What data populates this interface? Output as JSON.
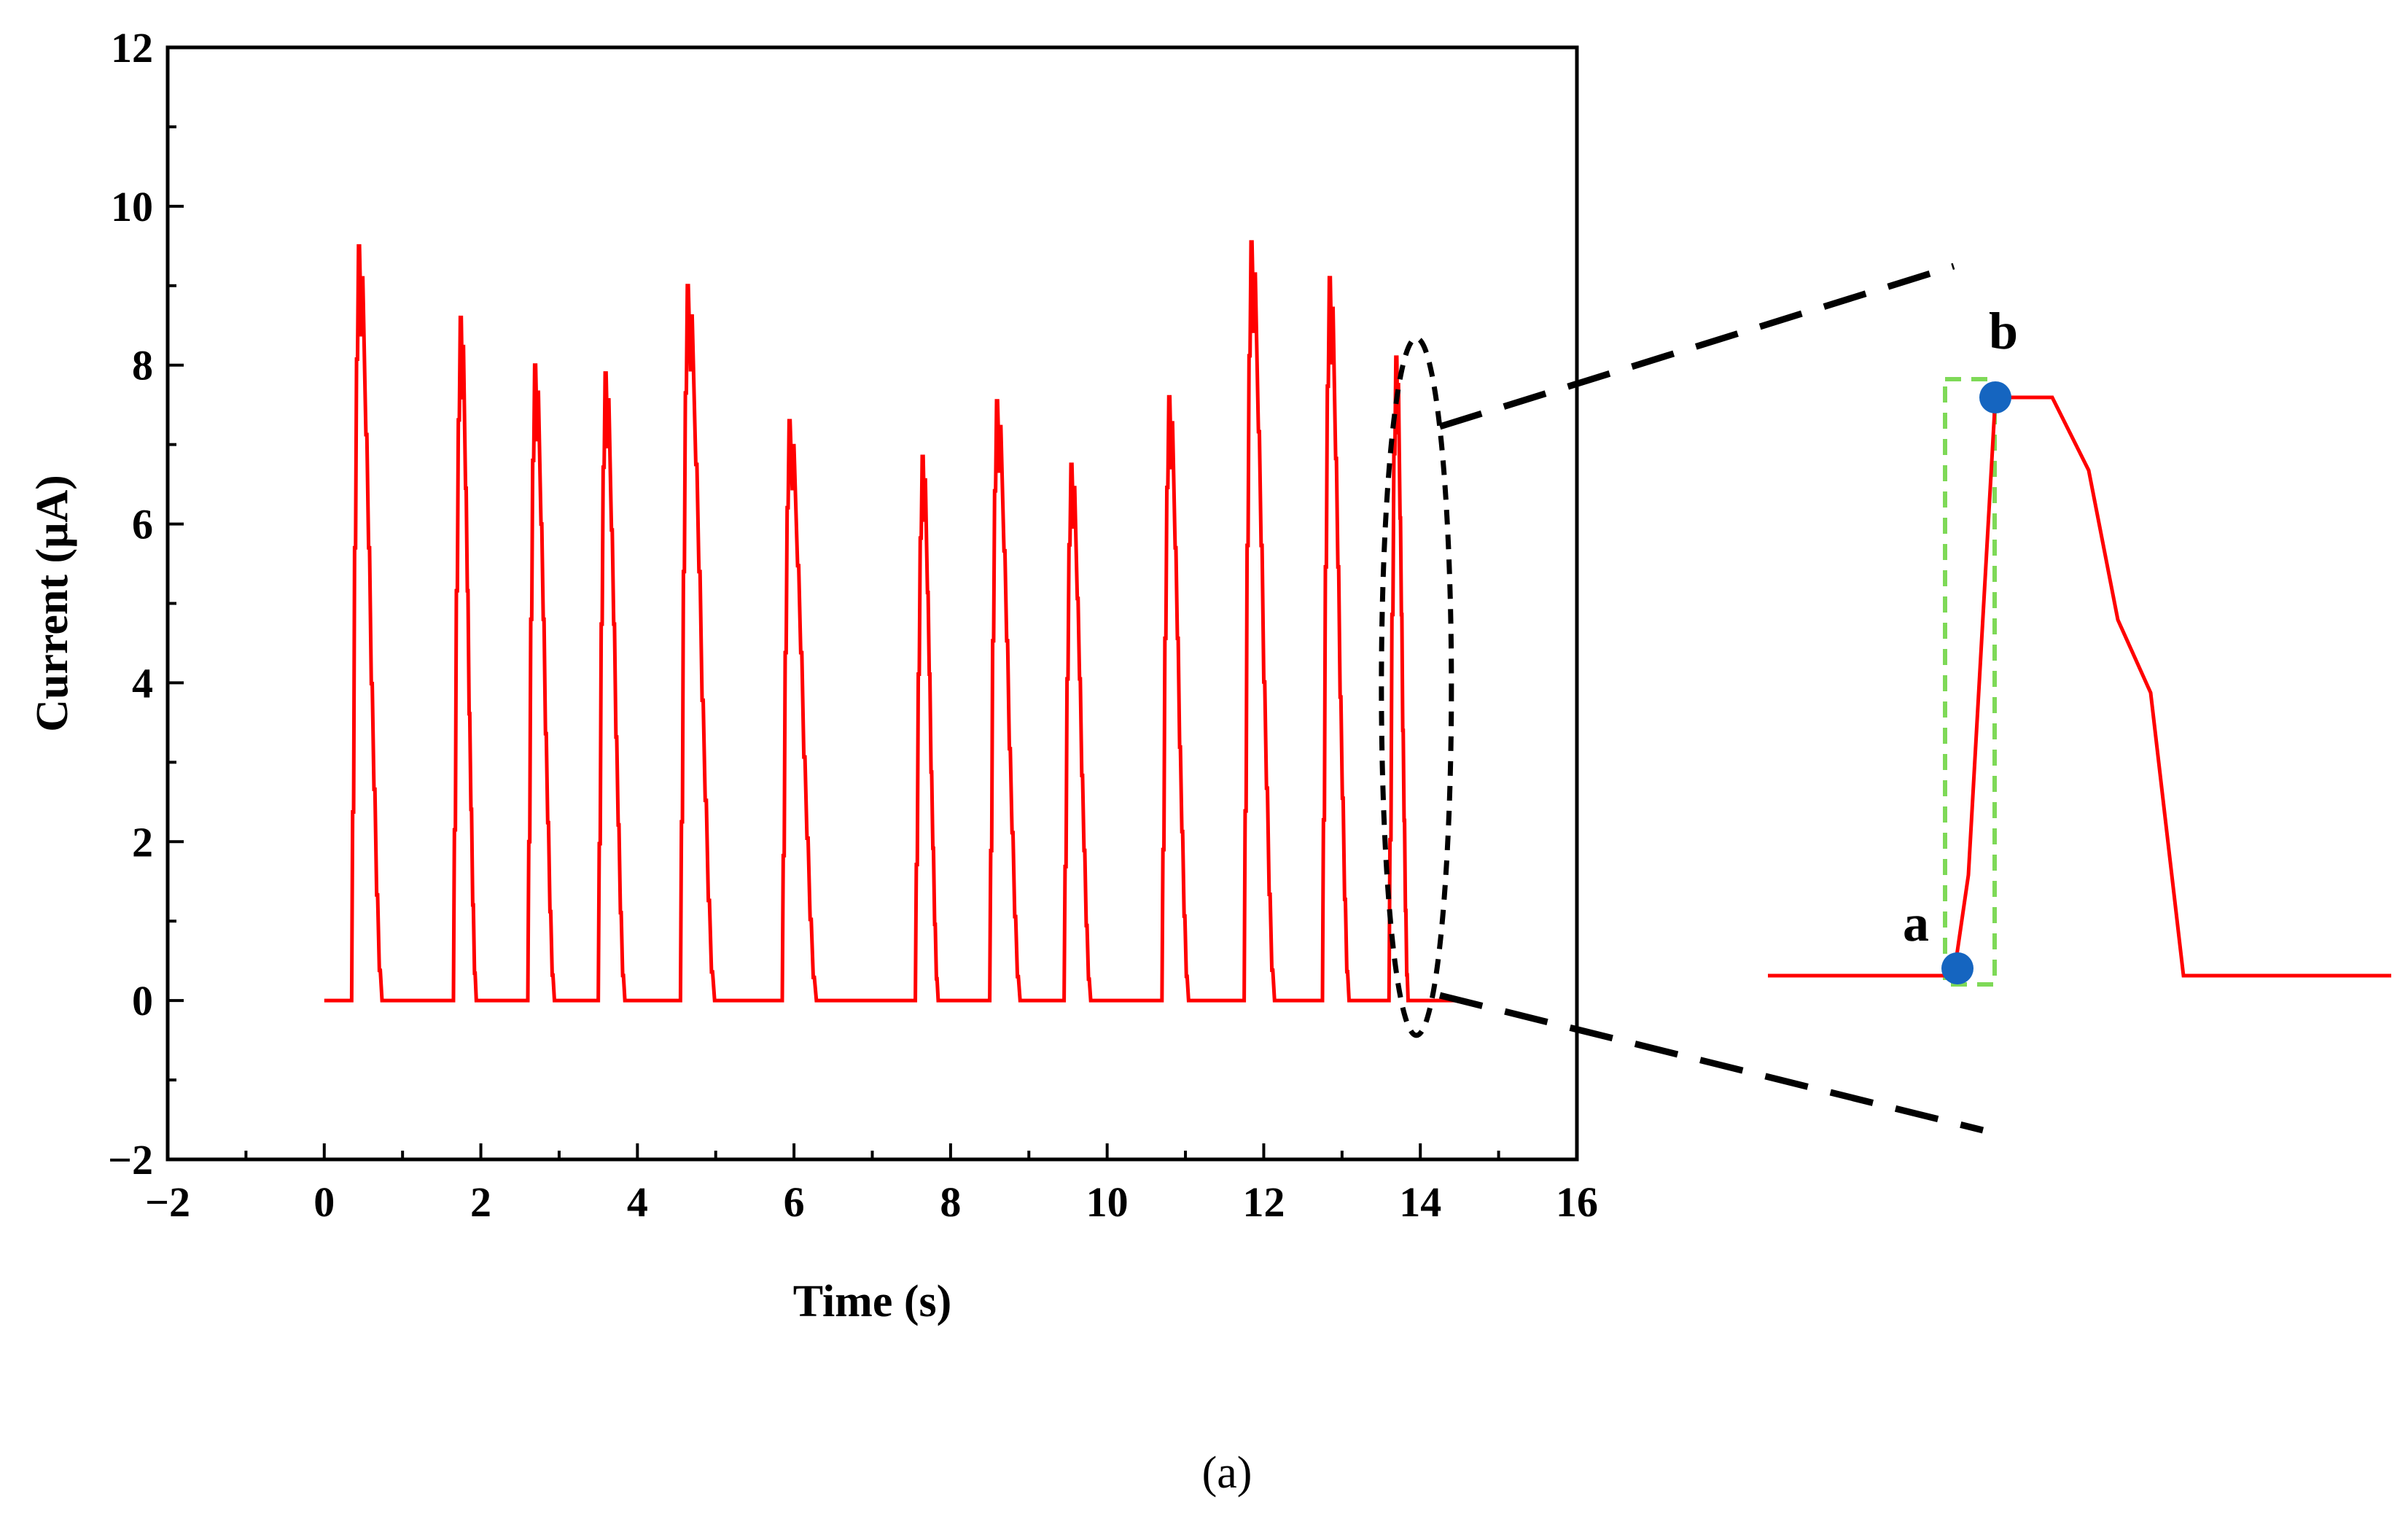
{
  "chart_data": {
    "type": "line",
    "title": "",
    "xlabel": "Time (s)",
    "ylabel": "Current (μA)",
    "xlim": [
      -2,
      16
    ],
    "ylim": [
      -2,
      12
    ],
    "x_ticks": [
      -2,
      0,
      2,
      4,
      6,
      8,
      10,
      12,
      14,
      16
    ],
    "y_ticks": [
      -2,
      0,
      2,
      4,
      6,
      8,
      10,
      12
    ],
    "x_tick_labels": [
      "−2",
      "0",
      "2",
      "4",
      "6",
      "8",
      "10",
      "12",
      "14",
      "16"
    ],
    "y_tick_labels": [
      "−2",
      "0",
      "2",
      "4",
      "6",
      "8",
      "10",
      "12"
    ],
    "grid": false,
    "line_color": "#ff0000",
    "baseline": 0,
    "x_end": 14.5,
    "pulses": [
      {
        "start": 0.35,
        "peak_time": 0.45,
        "peak": 9.5,
        "end": 0.75
      },
      {
        "start": 1.65,
        "peak_time": 1.75,
        "peak": 8.6,
        "end": 1.95
      },
      {
        "start": 2.6,
        "peak_time": 2.7,
        "peak": 8.0,
        "end": 2.95
      },
      {
        "start": 3.5,
        "peak_time": 3.6,
        "peak": 7.9,
        "end": 3.85
      },
      {
        "start": 4.55,
        "peak_time": 4.65,
        "peak": 9.0,
        "end": 5.0
      },
      {
        "start": 5.85,
        "peak_time": 5.95,
        "peak": 7.3,
        "end": 6.3
      },
      {
        "start": 7.55,
        "peak_time": 7.65,
        "peak": 6.85,
        "end": 7.85
      },
      {
        "start": 8.5,
        "peak_time": 8.6,
        "peak": 7.55,
        "end": 8.9
      },
      {
        "start": 9.45,
        "peak_time": 9.55,
        "peak": 6.75,
        "end": 9.8
      },
      {
        "start": 10.7,
        "peak_time": 10.8,
        "peak": 7.6,
        "end": 11.05
      },
      {
        "start": 11.75,
        "peak_time": 11.85,
        "peak": 9.55,
        "end": 12.15
      },
      {
        "start": 12.75,
        "peak_time": 12.85,
        "peak": 9.1,
        "end": 13.1
      },
      {
        "start": 13.6,
        "peak_time": 13.7,
        "peak": 8.1,
        "end": 13.85
      }
    ],
    "annotations": [
      {
        "label": "a",
        "meaning": "pulse onset"
      },
      {
        "label": "b",
        "meaning": "pulse peak"
      }
    ]
  },
  "colors": {
    "signal": "#ff0000",
    "marker": "#1565c0",
    "highlight": "#7ed957",
    "zoom_lines": "#000000"
  },
  "caption": "(a)"
}
